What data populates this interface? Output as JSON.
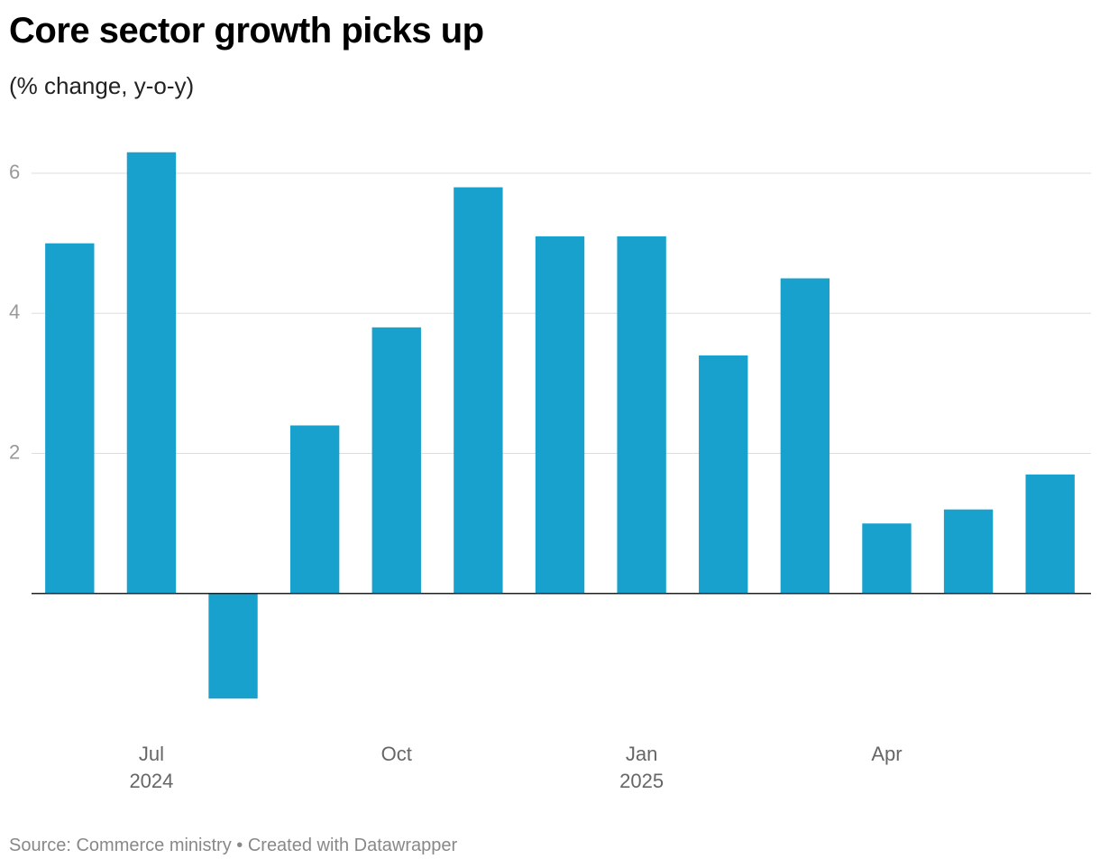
{
  "chart_data": {
    "type": "bar",
    "title": "Core sector growth picks up",
    "subtitle": "(% change, y-o-y)",
    "categories": [
      null,
      "Jul\n2024",
      null,
      null,
      "Oct",
      null,
      null,
      "Jan\n2025",
      null,
      null,
      "Apr",
      null,
      null
    ],
    "values": [
      5.0,
      6.3,
      -1.5,
      2.4,
      3.8,
      5.8,
      5.1,
      5.1,
      3.4,
      4.5,
      1.0,
      1.2,
      1.7
    ],
    "color": "#18a1cd",
    "ylim": [
      -1.6,
      6.4
    ],
    "yticks": [
      2,
      4,
      6
    ],
    "grid": true,
    "source": "Source: Commerce ministry • Created with Datawrapper"
  }
}
